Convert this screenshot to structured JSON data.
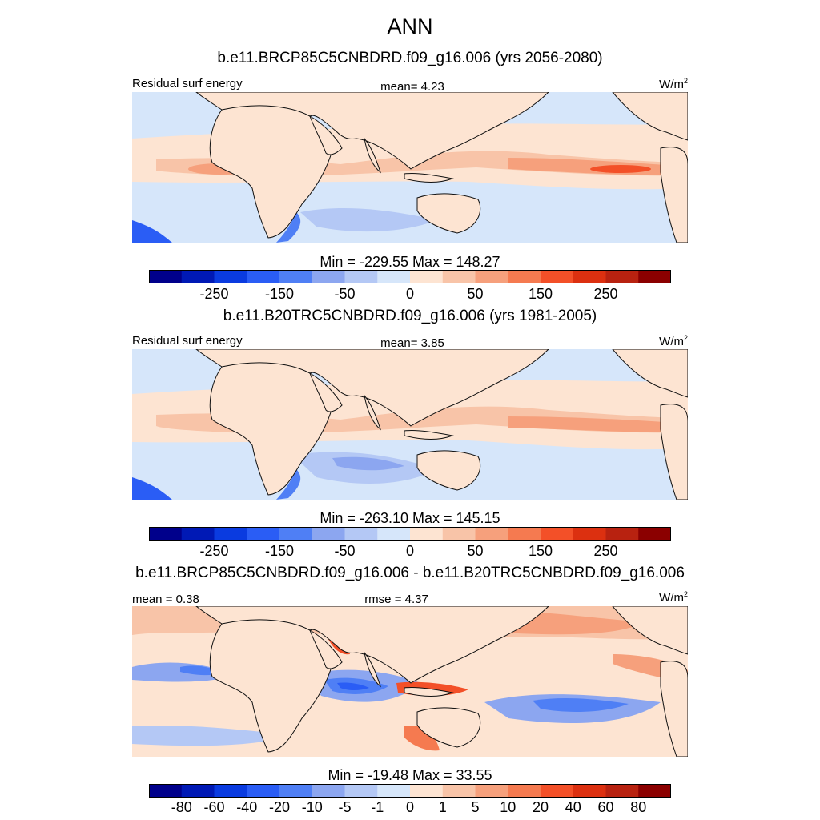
{
  "title": "ANN",
  "units_base": "W/m",
  "units_exp": "2",
  "panels": [
    {
      "title": "b.e11.BRCP85C5CNBDRD.f09_g16.006 (yrs 2056-2080)",
      "left_label": "Residual surf energy",
      "center_label": "mean=   4.23",
      "minmax": "Min = -229.55 Max = 148.27"
    },
    {
      "title": "b.e11.B20TRC5CNBDRD.f09_g16.006 (yrs 1981-2005)",
      "left_label": "Residual surf energy",
      "center_label": "mean=   3.85",
      "minmax": "Min = -263.10 Max = 145.15"
    },
    {
      "title": "b.e11.BRCP85C5CNBDRD.f09_g16.006 - b.e11.B20TRC5CNBDRD.f09_g16.006",
      "left_label": "mean =   0.38",
      "center_label": "rmse =   4.37",
      "minmax": "Min = -19.48 Max =  33.55"
    }
  ],
  "colorbar_colors": [
    "#00008b",
    "#0019b5",
    "#0a3be0",
    "#2a5df5",
    "#4f7ff5",
    "#8ca6f0",
    "#b4c8f5",
    "#d6e6fa",
    "#fde4d2",
    "#f8c4a8",
    "#f6a07c",
    "#f57a50",
    "#f35028",
    "#dc3010",
    "#b82210",
    "#8b0000"
  ],
  "colorbar_labels_main": [
    "-250",
    "-150",
    "-50",
    "0",
    "50",
    "150",
    "250"
  ],
  "colorbar_labels_diff": [
    "-80",
    "-60",
    "-40",
    "-20",
    "-10",
    "-5",
    "-1",
    "0",
    "1",
    "5",
    "10",
    "20",
    "40",
    "60",
    "80"
  ],
  "map_colors": {
    "ocean_warm": "#fde4d2",
    "ocean_cool": "#d6e6fa",
    "land": "#fde4d2",
    "band_mid": "#f8c4a8",
    "band_strong": "#f6a07c",
    "band_core": "#f35028",
    "blue_light": "#b4c8f5",
    "blue_mid": "#8ca6f0",
    "blue_strong": "#4f7ff5",
    "blue_deep": "#2a5df5",
    "coast": "#111111"
  }
}
